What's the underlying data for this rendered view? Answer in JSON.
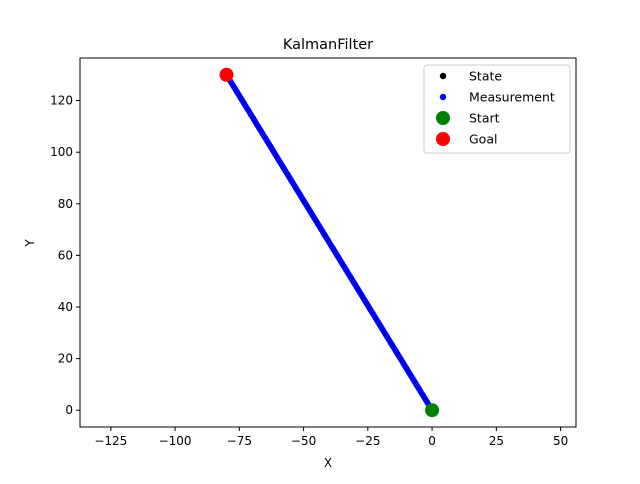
{
  "chart_data": {
    "type": "scatter",
    "title": "KalmanFilter",
    "xlabel": "X",
    "ylabel": "Y",
    "xlim": [
      -137,
      56
    ],
    "ylim": [
      -6.5,
      136.5
    ],
    "xticks": [
      -125,
      -100,
      -75,
      -50,
      -25,
      0,
      25,
      50
    ],
    "yticks": [
      0,
      20,
      40,
      60,
      80,
      100,
      120
    ],
    "xtick_labels": [
      "−125",
      "−100",
      "−75",
      "−50",
      "−25",
      "0",
      "25",
      "50"
    ],
    "ytick_labels": [
      "0",
      "20",
      "40",
      "60",
      "80",
      "100",
      "120"
    ],
    "grid": false,
    "legend_position": "top-right",
    "series": [
      {
        "name": "State",
        "color": "#000000",
        "marker": "small-dot",
        "x_range": [
          0,
          -80
        ],
        "y_range": [
          0,
          130
        ]
      },
      {
        "name": "Measurement",
        "color": "#0000ff",
        "marker": "small-dot",
        "x_range": [
          0,
          -80
        ],
        "y_range": [
          0,
          130
        ],
        "n_points": 161
      },
      {
        "name": "Start",
        "color": "#008000",
        "marker": "large-dot",
        "x": [
          0
        ],
        "y": [
          0
        ]
      },
      {
        "name": "Goal",
        "color": "#ff0000",
        "marker": "large-dot",
        "x": [
          -80
        ],
        "y": [
          130
        ]
      }
    ]
  }
}
